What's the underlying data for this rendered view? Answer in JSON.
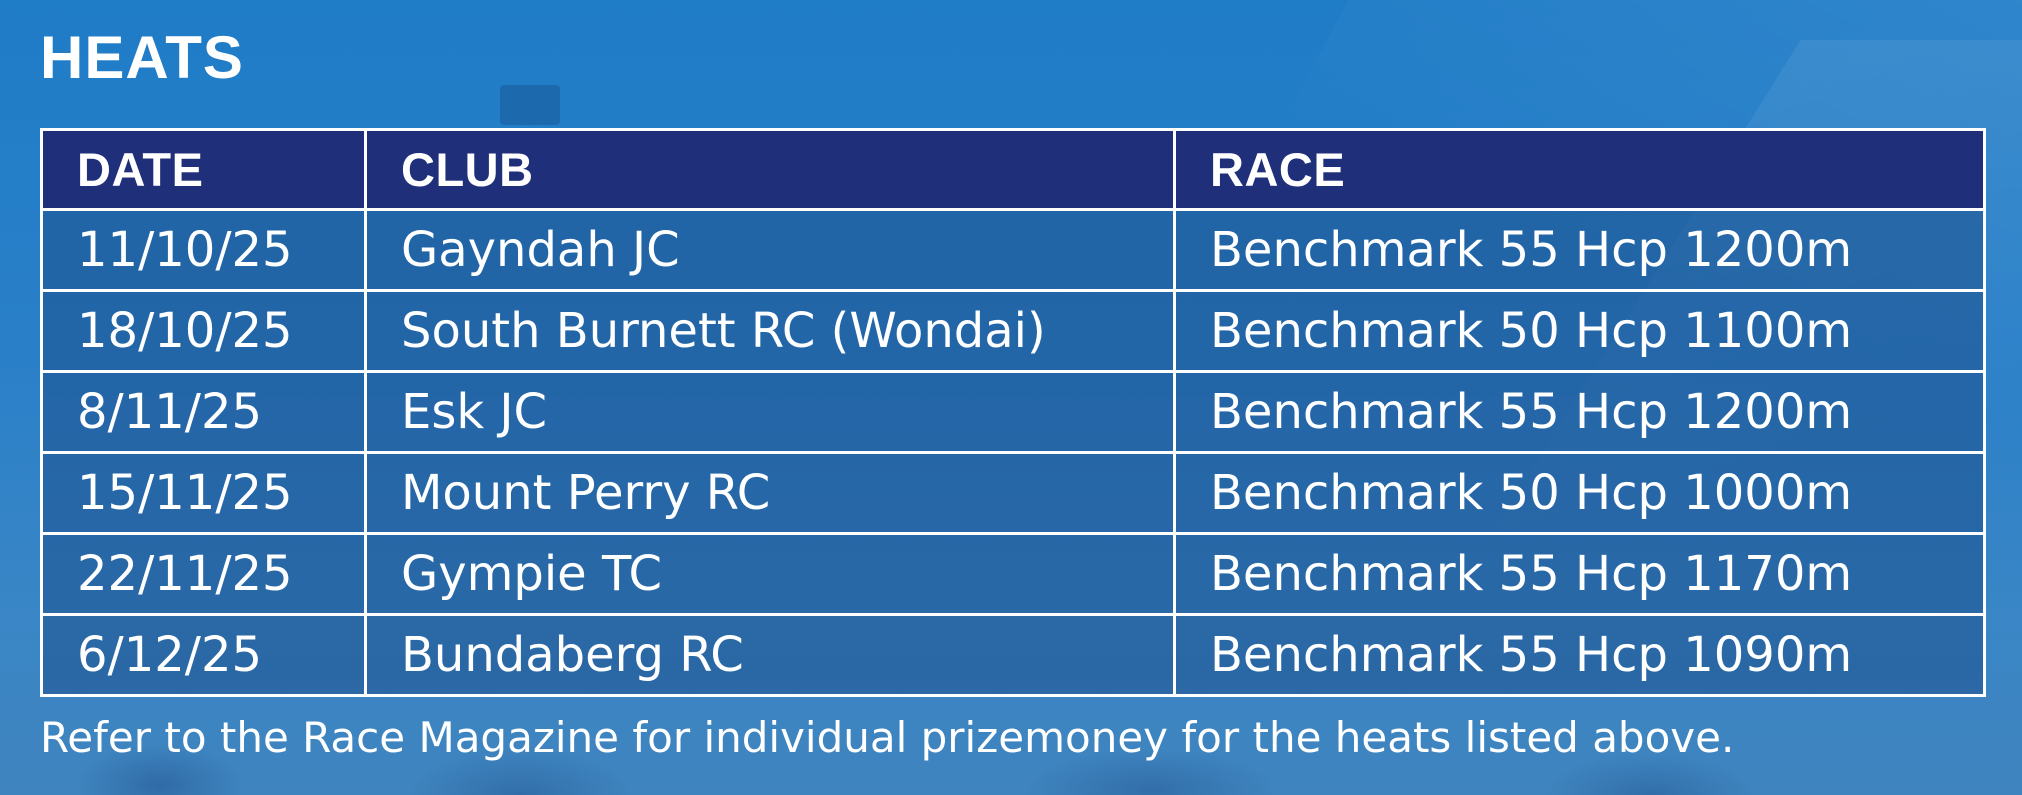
{
  "heading": "HEATS",
  "table": {
    "columns": [
      "DATE",
      "CLUB",
      "RACE"
    ],
    "rows": [
      {
        "date": "11/10/25",
        "club": "Gayndah JC",
        "race": "Benchmark 55 Hcp 1200m"
      },
      {
        "date": "18/10/25",
        "club": "South Burnett RC (Wondai)",
        "race": "Benchmark 50 Hcp 1100m"
      },
      {
        "date": "8/11/25",
        "club": "Esk JC",
        "race": "Benchmark 55 Hcp 1200m"
      },
      {
        "date": "15/11/25",
        "club": "Mount Perry RC",
        "race": "Benchmark 50 Hcp 1000m"
      },
      {
        "date": "22/11/25",
        "club": "Gympie TC",
        "race": "Benchmark 55 Hcp 1170m"
      },
      {
        "date": "6/12/25",
        "club": "Bundaberg RC",
        "race": "Benchmark 55 Hcp 1090m"
      }
    ]
  },
  "footnote": "Refer to the Race Magazine for individual prizemoney for the heats listed above.",
  "colors": {
    "background": "#2a80c8",
    "header_row": "#1f2f7a",
    "border": "#ffffff",
    "text": "#ffffff"
  }
}
